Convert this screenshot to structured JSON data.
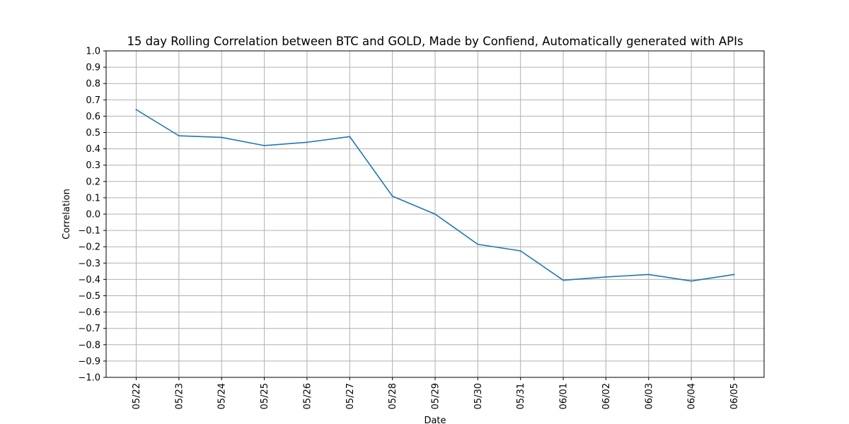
{
  "chart_data": {
    "type": "line",
    "title": "15 day Rolling Correlation between BTC and GOLD, Made by Confiend, Automatically generated with APIs",
    "xlabel": "Date",
    "ylabel": "Correlation",
    "x": [
      "05/22",
      "05/23",
      "05/24",
      "05/25",
      "05/26",
      "05/27",
      "05/28",
      "05/29",
      "05/30",
      "05/31",
      "06/01",
      "06/02",
      "06/03",
      "06/04",
      "06/05"
    ],
    "series": [
      {
        "values": [
          0.64,
          0.48,
          0.47,
          0.42,
          0.44,
          0.475,
          0.11,
          0.0,
          -0.185,
          -0.225,
          -0.405,
          -0.385,
          -0.37,
          -0.41,
          -0.37
        ]
      }
    ],
    "ylim": [
      -1.0,
      1.0
    ],
    "yticks": [
      "−1.0",
      "−0.9",
      "−0.8",
      "−0.7",
      "−0.6",
      "−0.5",
      "−0.4",
      "−0.3",
      "−0.2",
      "−0.1",
      "0.0",
      "0.1",
      "0.2",
      "0.3",
      "0.4",
      "0.5",
      "0.6",
      "0.7",
      "0.8",
      "0.9",
      "1.0"
    ],
    "grid": true,
    "line_color": "#1f77b4",
    "grid_color": "#b0b0b0"
  }
}
